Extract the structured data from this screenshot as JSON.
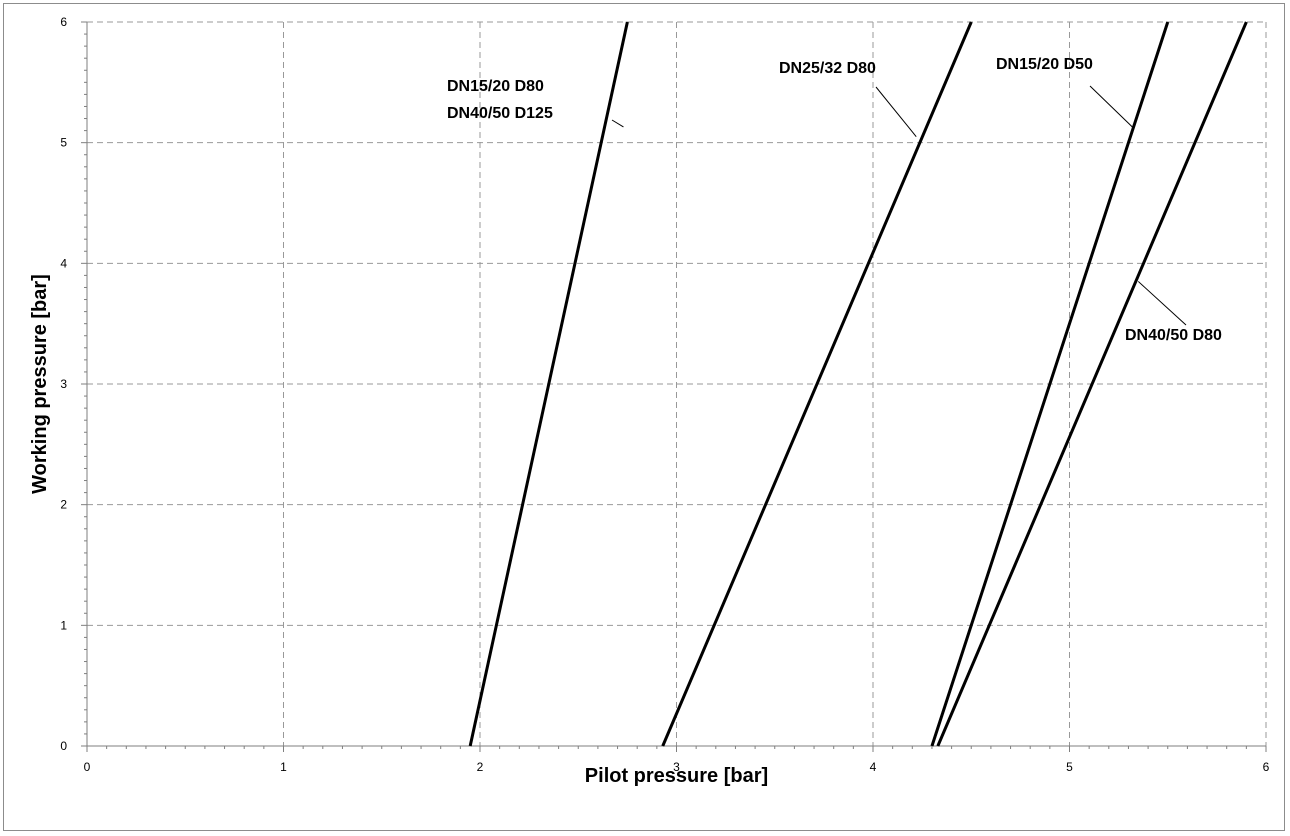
{
  "chart_data": {
    "type": "line",
    "title": "",
    "xlabel": "Pilot pressure [bar]",
    "ylabel": "Working pressure [bar]",
    "xlim": [
      0,
      6
    ],
    "ylim": [
      0,
      6
    ],
    "xticks": [
      "0",
      "1",
      "2",
      "3",
      "4",
      "5",
      "6"
    ],
    "yticks": [
      "0",
      "1",
      "2",
      "3",
      "4",
      "5",
      "6"
    ],
    "grid": true,
    "grid_style": "dashed",
    "line_color": "#000000",
    "grid_color": "#999999",
    "series": [
      {
        "name": "DN15/20 D80",
        "name2": "DN40/50 D125",
        "x": [
          1.95,
          2.75
        ],
        "y": [
          0,
          6
        ],
        "label_anchor": {
          "x": 2.73,
          "y": 5.13
        }
      },
      {
        "name": "DN25/32 D80",
        "x": [
          2.93,
          4.5
        ],
        "y": [
          0,
          6
        ],
        "label_anchor": {
          "x": 4.22,
          "y": 5.05
        }
      },
      {
        "name": "DN15/20 D50",
        "x": [
          4.3,
          5.5
        ],
        "y": [
          0,
          6
        ],
        "label_anchor": {
          "x": 5.32,
          "y": 5.13
        }
      },
      {
        "name": "DN40/50 D80",
        "x": [
          4.33,
          5.9
        ],
        "y": [
          0,
          6
        ],
        "label_anchor": {
          "x": 5.35,
          "y": 3.85
        }
      }
    ]
  }
}
